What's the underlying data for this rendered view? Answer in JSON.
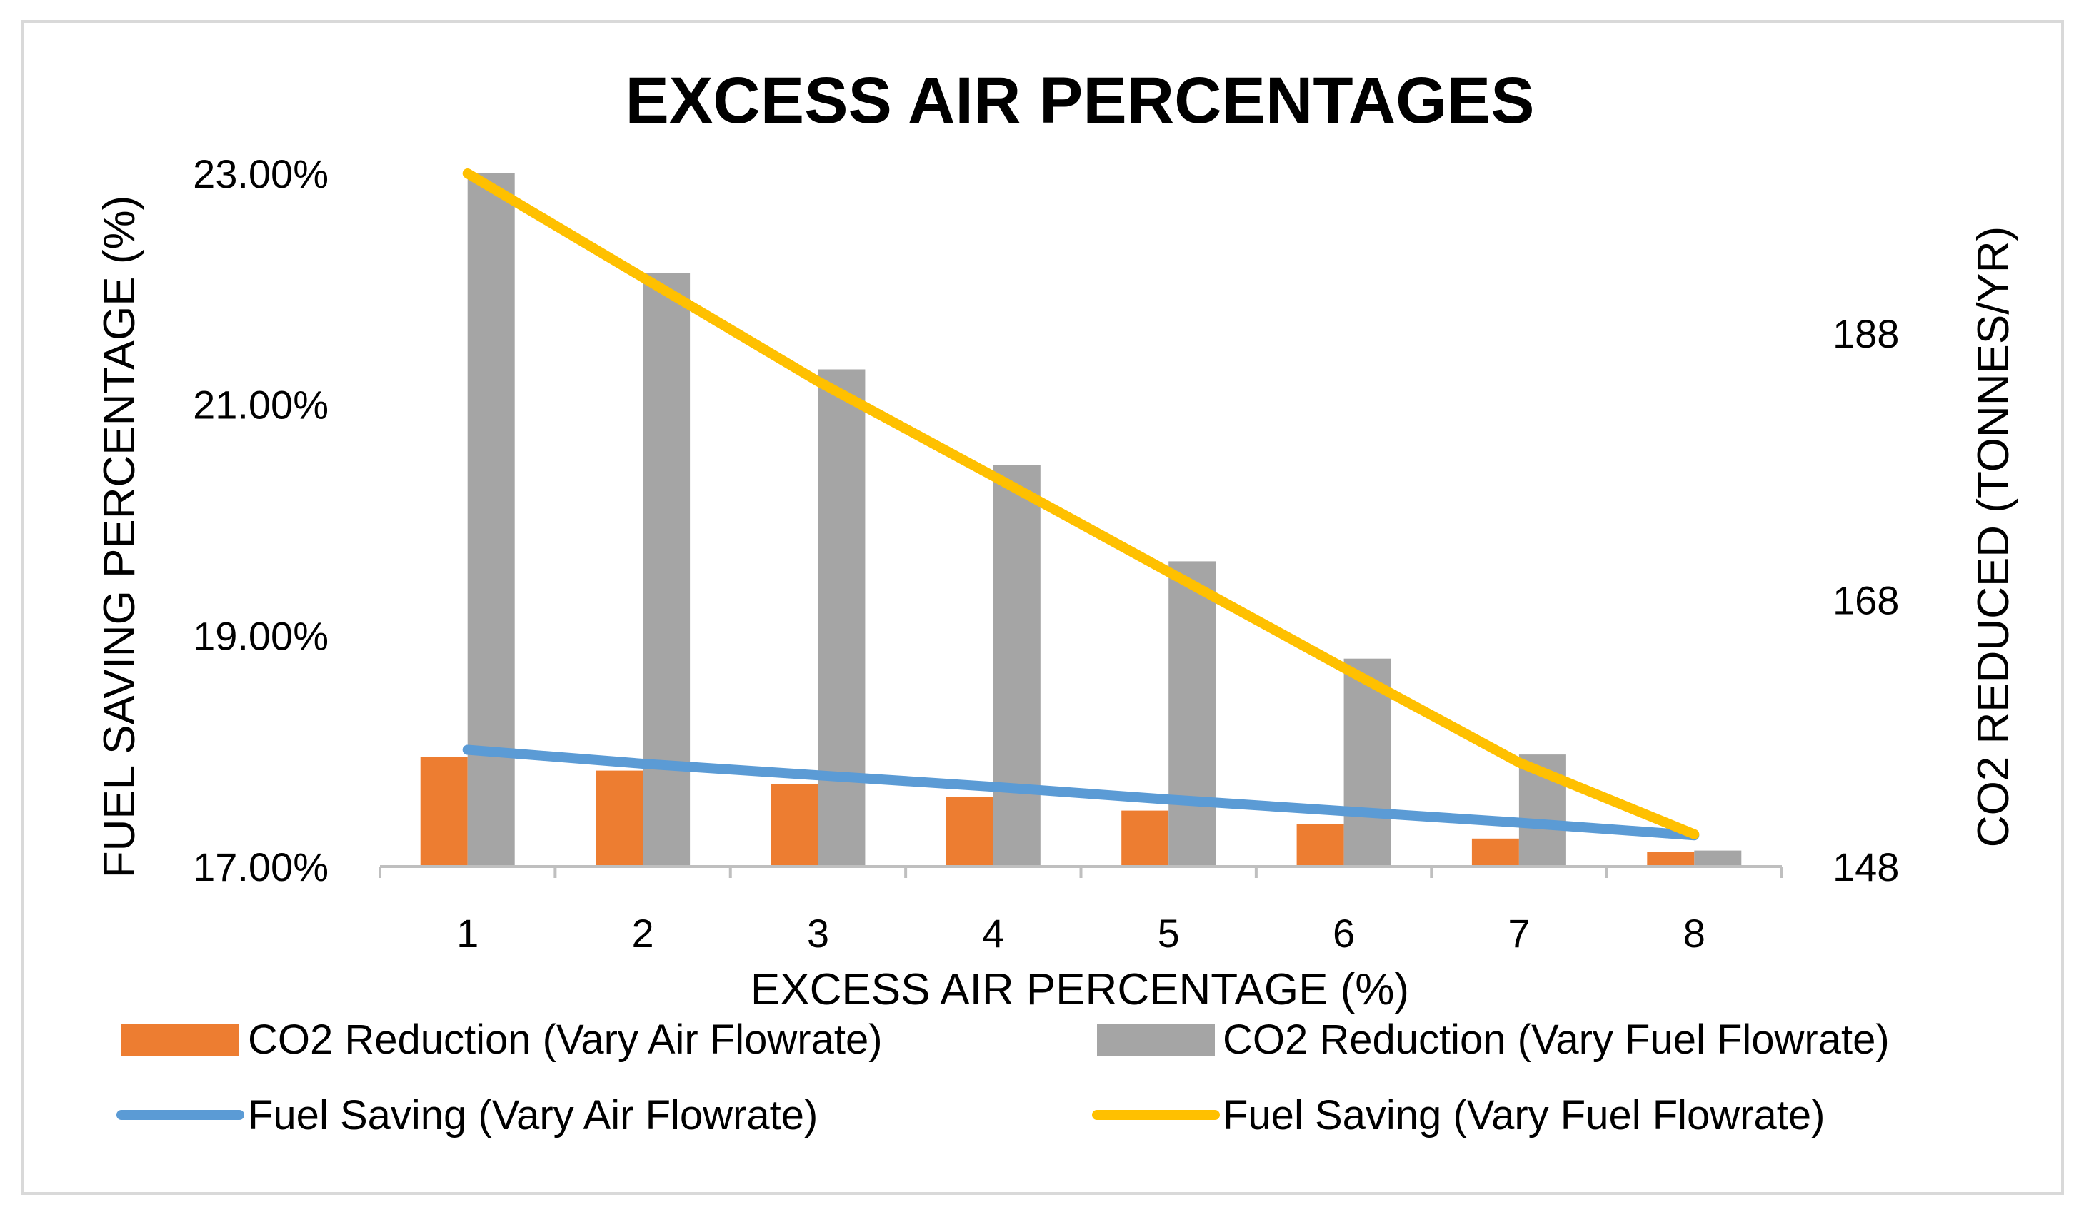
{
  "chart_data": {
    "type": "bar+line",
    "title": "EXCESS AIR PERCENTAGES",
    "xlabel": "EXCESS AIR PERCENTAGE (%)",
    "ylabel_left": "FUEL SAVING PERCENTAGE (%)",
    "ylabel_right": "CO2 REDUCED (TONNES/YR)",
    "categories": [
      "1",
      "2",
      "3",
      "4",
      "5",
      "6",
      "7",
      "8"
    ],
    "y_left": {
      "min": 17,
      "max": 23,
      "ticks": [
        17,
        19,
        21,
        23
      ],
      "tick_labels": [
        "17.00%",
        "19.00%",
        "21.00%",
        "23.00%"
      ]
    },
    "y_right": {
      "min": 148,
      "max": 200,
      "ticks": [
        148,
        168,
        188
      ],
      "tick_labels": [
        "148",
        "168",
        "188"
      ]
    },
    "series": [
      {
        "name": "CO2 Reduction (Vary Air Flowrate)",
        "kind": "bar",
        "axis": "right",
        "color": "#ED7D31",
        "values": [
          156.2,
          155.2,
          154.2,
          153.2,
          152.2,
          151.2,
          150.1,
          149.1
        ]
      },
      {
        "name": "CO2 Reduction (Vary Fuel Flowrate)",
        "kind": "bar",
        "axis": "right",
        "color": "#A5A5A5",
        "values": [
          200.0,
          192.5,
          185.3,
          178.1,
          170.9,
          163.6,
          156.4,
          149.2
        ]
      },
      {
        "name": "Fuel Saving (Vary Air Flowrate)",
        "kind": "line",
        "axis": "left",
        "color": "#5B9BD5",
        "values": [
          18.01,
          17.89,
          17.79,
          17.69,
          17.58,
          17.48,
          17.38,
          17.27
        ]
      },
      {
        "name": "Fuel Saving (Vary Fuel Flowrate)",
        "kind": "line",
        "axis": "left",
        "color": "#FFC000",
        "values": [
          23.0,
          22.1,
          21.2,
          20.38,
          19.55,
          18.72,
          17.9,
          17.28
        ]
      }
    ],
    "legend_position": "bottom",
    "grid": false
  }
}
